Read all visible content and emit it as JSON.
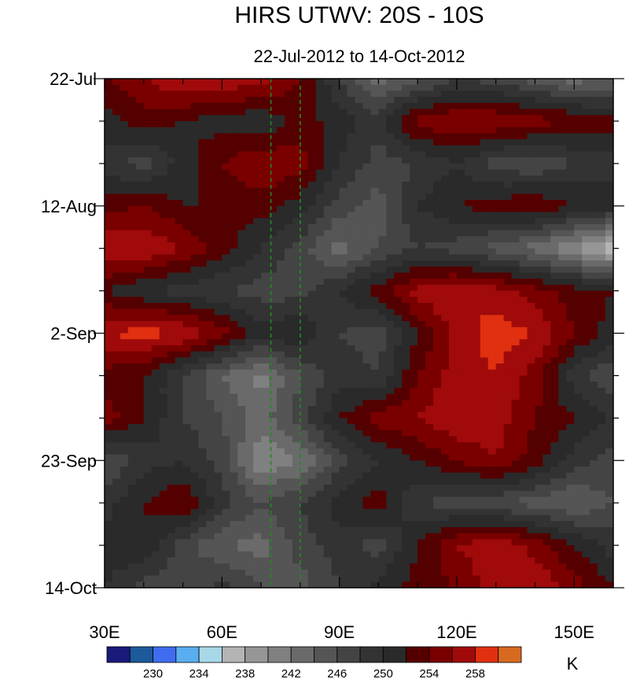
{
  "chart_data": {
    "type": "heatmap",
    "title": "HIRS UTWV: 20S - 10S",
    "subtitle": "22-Jul-2012 to 14-Oct-2012",
    "x_axis": {
      "range": [
        30,
        160
      ],
      "ticks": [
        30,
        60,
        90,
        120,
        150
      ],
      "tick_labels": [
        "30E",
        "60E",
        "90E",
        "120E",
        "150E"
      ],
      "minor_step": 10
    },
    "y_axis": {
      "range": [
        "22-Jul-2012",
        "14-Oct-2012"
      ],
      "inverted": true,
      "ticks": [
        "22-Jul-2012",
        "12-Aug-2012",
        "2-Sep-2012",
        "23-Sep-2012",
        "14-Oct-2012"
      ],
      "tick_labels": [
        "22-Jul",
        "12-Aug",
        "2-Sep",
        "23-Sep",
        "14-Oct"
      ]
    },
    "reference_lines": {
      "longitudes": [
        72.5,
        80
      ],
      "style": "dashed",
      "color": "#228b22"
    },
    "colorbar": {
      "unit": "K",
      "levels": [
        228,
        230,
        232,
        234,
        236,
        238,
        240,
        242,
        244,
        246,
        248,
        250,
        252,
        254,
        256,
        258,
        260
      ],
      "labeled_levels": [
        "230",
        "234",
        "238",
        "242",
        "246",
        "250",
        "254",
        "258"
      ],
      "colors": [
        "#1a1a7a",
        "#1c5a9a",
        "#3f6cf0",
        "#5aaef0",
        "#a8d8e8",
        "#b4b4b4",
        "#969696",
        "#808080",
        "#6a6a6a",
        "#555555",
        "#444444",
        "#333333",
        "#2a2a2a",
        "#550000",
        "#7a0000",
        "#a00a0a",
        "#e03010",
        "#d86a20"
      ]
    },
    "field": {
      "dates": [
        "22-Jul-2012",
        "29-Jul-2012",
        "5-Aug-2012",
        "12-Aug-2012",
        "19-Aug-2012",
        "26-Aug-2012",
        "2-Sep-2012",
        "9-Sep-2012",
        "16-Sep-2012",
        "23-Sep-2012",
        "30-Sep-2012",
        "7-Oct-2012",
        "14-Oct-2012"
      ],
      "longitudes": [
        30,
        40,
        50,
        60,
        70,
        80,
        90,
        100,
        110,
        120,
        130,
        140,
        150,
        160
      ],
      "values": [
        [
          254,
          256,
          258,
          258,
          257,
          254,
          248,
          243,
          245,
          248,
          247,
          245,
          243,
          244
        ],
        [
          251,
          253,
          252,
          251,
          250,
          253,
          251,
          249,
          255,
          256,
          256,
          255,
          254,
          253
        ],
        [
          249,
          247,
          251,
          254,
          256,
          255,
          250,
          247,
          248,
          250,
          247,
          246,
          248,
          249
        ],
        [
          253,
          254,
          252,
          252,
          253,
          251,
          247,
          245,
          250,
          252,
          253,
          254,
          252,
          251
        ],
        [
          258,
          258,
          256,
          253,
          250,
          247,
          243,
          246,
          248,
          247,
          245,
          243,
          240,
          236
        ],
        [
          252,
          250,
          249,
          248,
          247,
          247,
          250,
          253,
          257,
          258,
          257,
          255,
          253,
          252
        ],
        [
          258,
          259,
          258,
          255,
          251,
          252,
          248,
          247,
          252,
          257,
          259,
          258,
          254,
          251
        ],
        [
          253,
          252,
          248,
          244,
          241,
          246,
          249,
          248,
          254,
          257,
          258,
          255,
          249,
          246
        ],
        [
          255,
          252,
          248,
          246,
          243,
          247,
          252,
          255,
          256,
          258,
          257,
          254,
          252,
          250
        ],
        [
          246,
          249,
          250,
          247,
          240,
          242,
          247,
          250,
          252,
          254,
          256,
          253,
          249,
          247
        ],
        [
          249,
          252,
          254,
          249,
          246,
          248,
          251,
          253,
          248,
          247,
          246,
          245,
          244,
          246
        ],
        [
          251,
          252,
          247,
          244,
          243,
          247,
          249,
          247,
          252,
          256,
          258,
          255,
          252,
          249
        ],
        [
          250,
          247,
          246,
          249,
          246,
          245,
          248,
          251,
          253,
          254,
          257,
          258,
          255,
          252
        ]
      ]
    }
  }
}
